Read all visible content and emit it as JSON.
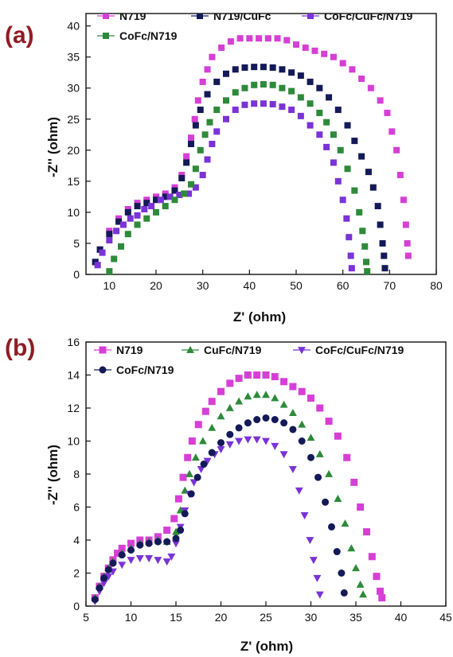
{
  "chart_data": [
    {
      "type": "scatter",
      "panel_label": "(a)",
      "xlabel": "Z' (ohm)",
      "ylabel": "-Z'' (ohm)",
      "xlim": [
        5,
        80
      ],
      "ylim": [
        0,
        42
      ],
      "xticks": [
        10,
        20,
        30,
        40,
        50,
        60,
        70,
        80
      ],
      "yticks": [
        0,
        5,
        10,
        15,
        20,
        25,
        30,
        35,
        40
      ],
      "legend_position": "top",
      "series": [
        {
          "name": "N719",
          "color": "#d63fd6",
          "marker": "square",
          "x": [
            7,
            8,
            10,
            12,
            14,
            16,
            18,
            20,
            22,
            24,
            25.5,
            26.5,
            27.5,
            28.3,
            29,
            30,
            31,
            32,
            34,
            36,
            38,
            40,
            42,
            44,
            46,
            48,
            50,
            52,
            54,
            56,
            58,
            60,
            62,
            64,
            66,
            68,
            69.5,
            70.5,
            71.5,
            72.3,
            73,
            73.5,
            73.8,
            74
          ],
          "y": [
            2,
            4,
            7,
            9,
            10.5,
            11.5,
            12,
            12.5,
            13,
            14,
            16,
            19,
            22,
            25,
            28,
            31,
            33,
            35,
            36.5,
            37.5,
            38,
            38,
            38,
            38,
            38,
            37.7,
            37,
            36.5,
            36,
            35.5,
            35,
            34,
            33,
            31.5,
            30,
            28,
            26,
            23,
            20,
            16,
            12,
            8,
            5,
            3
          ]
        },
        {
          "name": "N719/CuFc",
          "color": "#141a57",
          "marker": "square",
          "x": [
            7,
            8,
            10,
            12,
            14,
            16,
            18,
            20,
            22,
            24,
            25.5,
            26.5,
            27.5,
            28.5,
            29.5,
            31,
            33,
            35,
            37,
            39,
            41,
            43,
            45,
            47,
            49,
            51,
            53,
            55,
            57,
            59,
            61,
            62.5,
            64,
            65.5,
            66.5,
            67.5,
            68,
            68.5,
            68.8,
            69
          ],
          "y": [
            2,
            4,
            6.5,
            8.5,
            10,
            11,
            11.5,
            12,
            12.5,
            13.5,
            15.5,
            18,
            21,
            24,
            26.5,
            29,
            31,
            32.3,
            33,
            33.3,
            33.4,
            33.4,
            33.3,
            33,
            32.5,
            32,
            31,
            30,
            28.5,
            26.5,
            24,
            21.5,
            19,
            16.5,
            14,
            11,
            8,
            5,
            3,
            1
          ]
        },
        {
          "name": "CoFc/CuFc/N719",
          "color": "#7a33d6",
          "marker": "square",
          "x": [
            7.5,
            8.5,
            10,
            11.5,
            13,
            14.5,
            16,
            17.5,
            19,
            21,
            23,
            25,
            27,
            28.5,
            30,
            31,
            32,
            33,
            35,
            37,
            39,
            41,
            43,
            45,
            47,
            49,
            51,
            53,
            55,
            56.5,
            58,
            59,
            60,
            60.8,
            61.3,
            61.7,
            61.9
          ],
          "y": [
            1.5,
            3.5,
            5.5,
            7,
            8,
            9,
            9.5,
            10.5,
            11,
            12,
            12.5,
            12.8,
            13,
            14,
            16,
            18.5,
            21,
            23,
            25,
            26.5,
            27.3,
            27.5,
            27.5,
            27.4,
            27,
            26.5,
            25.5,
            24,
            22.5,
            20.5,
            18,
            15,
            12,
            9,
            6,
            3,
            1
          ]
        },
        {
          "name": "CoFc/N719",
          "color": "#2d8a3a",
          "marker": "square",
          "x": [
            10,
            11,
            12.5,
            14,
            16,
            18,
            20,
            22,
            24,
            26,
            27.5,
            28.5,
            29.5,
            30.5,
            31.5,
            33,
            35,
            37,
            39,
            41,
            43,
            45,
            47,
            49,
            51,
            53,
            55,
            56.5,
            58,
            59.5,
            61,
            62.5,
            63.5,
            64.2,
            64.7,
            65,
            65.2
          ],
          "y": [
            0.5,
            2.5,
            4.5,
            6.5,
            8,
            9,
            10,
            11,
            12,
            13,
            14.5,
            17,
            20,
            22.5,
            24.5,
            26.5,
            28,
            29.3,
            30,
            30.5,
            30.6,
            30.5,
            30,
            29.5,
            28.5,
            27.5,
            26,
            24.5,
            22.5,
            20,
            17,
            13.5,
            10,
            7,
            4.5,
            2,
            0.5
          ]
        }
      ]
    },
    {
      "type": "scatter",
      "panel_label": "(b)",
      "xlabel": "Z' (ohm)",
      "ylabel": "-Z'' (ohm)",
      "xlim": [
        5,
        45
      ],
      "ylim": [
        0,
        16
      ],
      "xticks": [
        5,
        10,
        15,
        20,
        25,
        30,
        35,
        40,
        45
      ],
      "yticks": [
        0,
        2,
        4,
        6,
        8,
        10,
        12,
        14,
        16
      ],
      "legend_position": "top",
      "series": [
        {
          "name": "N719",
          "color": "#d63fd6",
          "marker": "square",
          "x": [
            6,
            6.5,
            7,
            7.5,
            8,
            8.5,
            9,
            10,
            11,
            12,
            13,
            14,
            14.8,
            15.3,
            15.8,
            16.3,
            16.8,
            17.5,
            18.3,
            19,
            20,
            21,
            22,
            23,
            24,
            25,
            26,
            27,
            28,
            29,
            30,
            31,
            32,
            33,
            34,
            34.8,
            35.5,
            36.2,
            36.8,
            37.3,
            37.7,
            37.9
          ],
          "y": [
            0.5,
            1.2,
            1.8,
            2.3,
            2.8,
            3.2,
            3.5,
            3.8,
            4,
            4,
            4.2,
            4.6,
            5.3,
            6.5,
            7.8,
            9,
            10,
            11,
            11.8,
            12.4,
            13,
            13.5,
            13.8,
            14,
            14,
            14,
            13.9,
            13.6,
            13.3,
            13,
            12.6,
            12,
            11.2,
            10.3,
            9,
            7.5,
            6,
            4.5,
            3,
            1.8,
            0.9,
            0.5
          ]
        },
        {
          "name": "CuFc/N719",
          "color": "#2d8a3a",
          "marker": "triangle-up",
          "x": [
            6,
            6.5,
            7,
            7.5,
            8,
            9,
            10,
            11,
            12,
            13,
            14,
            15,
            15.5,
            16,
            16.5,
            17.2,
            18,
            19,
            20,
            21,
            22,
            23,
            24,
            25,
            26,
            27,
            28,
            29,
            30,
            31,
            32,
            33,
            33.8,
            34.5,
            35,
            35.5,
            35.8
          ],
          "y": [
            0.5,
            1.2,
            1.8,
            2.3,
            2.7,
            3.2,
            3.5,
            3.8,
            3.9,
            4,
            3.9,
            4.5,
            5.8,
            7,
            8,
            9,
            10,
            10.8,
            11.5,
            12,
            12.4,
            12.7,
            12.8,
            12.8,
            12.6,
            12.2,
            11.7,
            11,
            10.2,
            9.2,
            8,
            6.5,
            5,
            3.5,
            2.3,
            1.3,
            0.7
          ]
        },
        {
          "name": "CoFc/CuFc/N719",
          "color": "#7a33d6",
          "marker": "triangle-down",
          "x": [
            6,
            6.5,
            7,
            7.5,
            8,
            9,
            10,
            11,
            12,
            13,
            14,
            14.5,
            15,
            15.5,
            16,
            16.5,
            17,
            17.8,
            18.5,
            19.3,
            20,
            21,
            22,
            23,
            24,
            25,
            26,
            27,
            28,
            28.7,
            29.3,
            29.9,
            30.3,
            30.7,
            31
          ],
          "y": [
            0.3,
            0.9,
            1.4,
            1.8,
            2.1,
            2.5,
            2.8,
            2.9,
            2.9,
            2.8,
            2.7,
            3,
            3.8,
            4.8,
            5.8,
            6.8,
            7.5,
            8.3,
            8.8,
            9.2,
            9.5,
            9.8,
            10,
            10.1,
            10.1,
            10,
            9.7,
            9.2,
            8.3,
            7,
            5.5,
            4,
            2.8,
            1.7,
            0.7
          ]
        },
        {
          "name": "CoFc/N719",
          "color": "#141a57",
          "marker": "circle",
          "x": [
            6,
            6.5,
            7,
            7.5,
            8,
            9,
            10,
            11,
            12,
            13,
            14,
            15,
            15.5,
            16,
            16.7,
            17.4,
            18.1,
            19,
            20,
            21,
            22,
            23,
            24,
            25,
            26,
            27,
            28,
            29,
            30,
            30.8,
            31.6,
            32.3,
            32.9,
            33.4,
            33.7
          ],
          "y": [
            0.4,
            1.1,
            1.7,
            2.2,
            2.6,
            3.1,
            3.4,
            3.7,
            3.8,
            3.9,
            3.9,
            4.1,
            4.6,
            5.6,
            6.8,
            7.8,
            8.6,
            9.3,
            9.9,
            10.4,
            10.8,
            11.1,
            11.3,
            11.4,
            11.3,
            11.1,
            10.7,
            10,
            9,
            7.8,
            6.3,
            4.8,
            3.3,
            2,
            0.8
          ]
        }
      ]
    }
  ]
}
